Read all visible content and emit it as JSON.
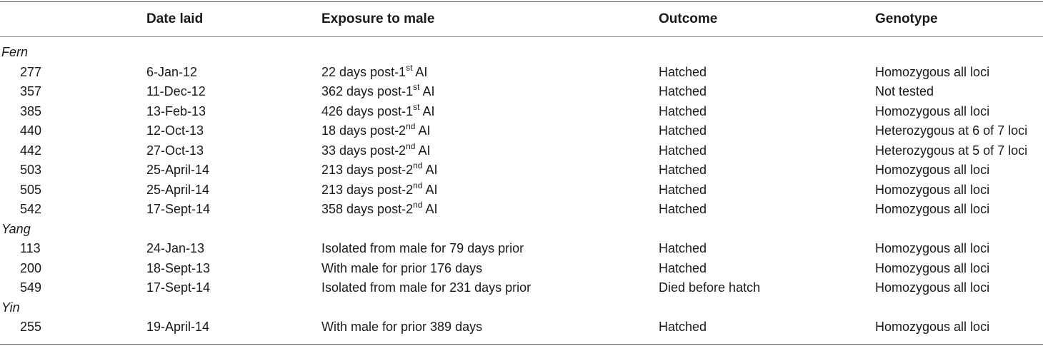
{
  "headers": {
    "id": "",
    "date_laid": "Date laid",
    "exposure": "Exposure to male",
    "outcome": "Outcome",
    "genotype": "Genotype"
  },
  "groups": [
    {
      "label": "Fern",
      "rows": [
        {
          "id": "277",
          "date": "6-Jan-12",
          "exp_pre": "22 days post-1",
          "exp_sup": "st",
          "exp_post": " AI",
          "outcome": "Hatched",
          "genotype": "Homozygous all loci"
        },
        {
          "id": "357",
          "date": "11-Dec-12",
          "exp_pre": "362 days post-1",
          "exp_sup": "st",
          "exp_post": " AI",
          "outcome": "Hatched",
          "genotype": "Not tested"
        },
        {
          "id": "385",
          "date": "13-Feb-13",
          "exp_pre": "426 days post-1",
          "exp_sup": "st",
          "exp_post": " AI",
          "outcome": "Hatched",
          "genotype": "Homozygous all loci"
        },
        {
          "id": "440",
          "date": "12-Oct-13",
          "exp_pre": "18 days post-2",
          "exp_sup": "nd",
          "exp_post": " AI",
          "outcome": "Hatched",
          "genotype": "Heterozygous at 6 of 7 loci"
        },
        {
          "id": "442",
          "date": "27-Oct-13",
          "exp_pre": "33 days post-2",
          "exp_sup": "nd",
          "exp_post": " AI",
          "outcome": "Hatched",
          "genotype": "Heterozygous at 5 of 7 loci"
        },
        {
          "id": "503",
          "date": "25-April-14",
          "exp_pre": "213 days post-2",
          "exp_sup": "nd",
          "exp_post": " AI",
          "outcome": "Hatched",
          "genotype": "Homozygous all loci"
        },
        {
          "id": "505",
          "date": "25-April-14",
          "exp_pre": "213 days post-2",
          "exp_sup": "nd",
          "exp_post": " AI",
          "outcome": "Hatched",
          "genotype": "Homozygous all loci"
        },
        {
          "id": "542",
          "date": "17-Sept-14",
          "exp_pre": "358 days post-2",
          "exp_sup": "nd",
          "exp_post": " AI",
          "outcome": "Hatched",
          "genotype": "Homozygous all loci"
        }
      ]
    },
    {
      "label": "Yang",
      "rows": [
        {
          "id": "113",
          "date": "24-Jan-13",
          "exp_pre": "Isolated from male for 79 days prior",
          "exp_sup": "",
          "exp_post": "",
          "outcome": "Hatched",
          "genotype": "Homozygous all loci"
        },
        {
          "id": "200",
          "date": "18-Sept-13",
          "exp_pre": "With male for prior 176 days",
          "exp_sup": "",
          "exp_post": "",
          "outcome": "Hatched",
          "genotype": "Homozygous all loci"
        },
        {
          "id": "549",
          "date": "17-Sept-14",
          "exp_pre": "Isolated from male for 231 days prior",
          "exp_sup": "",
          "exp_post": "",
          "outcome": "Died before hatch",
          "genotype": "Homozygous all loci"
        }
      ]
    },
    {
      "label": "Yin",
      "rows": [
        {
          "id": "255",
          "date": "19-April-14",
          "exp_pre": "With male for prior 389 days",
          "exp_sup": "",
          "exp_post": "",
          "outcome": "Hatched",
          "genotype": "Homozygous all loci"
        }
      ]
    }
  ]
}
